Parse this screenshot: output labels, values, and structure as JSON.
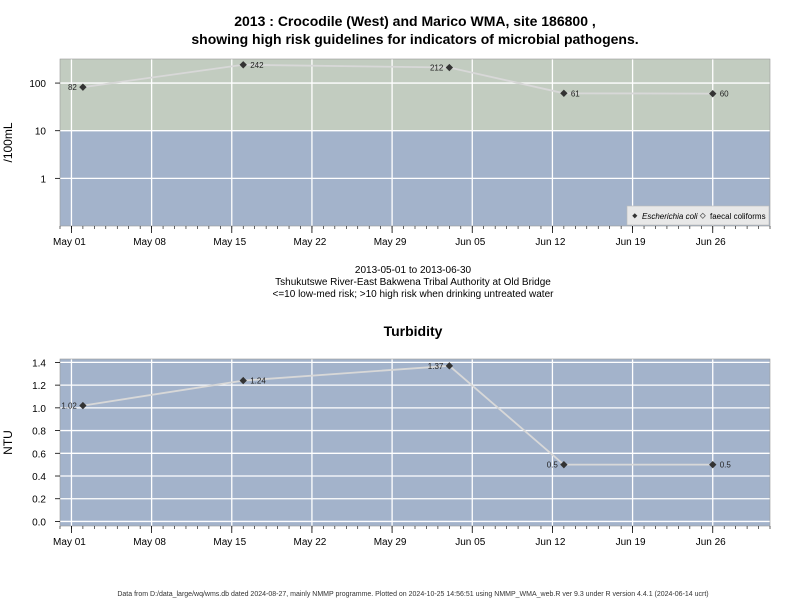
{
  "title_line1": "2013 : Crocodile (West) and Marico WMA, site 186800 ,",
  "title_line2": "showing high risk guidelines for indicators of microbial pathogens.",
  "date_range": "2013-05-01 to 2013-06-30",
  "location": "Tshukutswe River-East Bakwena Tribal Authority at Old Bridge",
  "risk_note": "<=10 low-med risk; >10 high risk when drinking untreated water",
  "footer": "Data from D:/data_large/wq/wms.db dated 2024-08-27, mainly NMMP programme. Plotted on 2024-10-25 14:56:51 using NMMP_WMA_web.R ver 9.3 under R version 4.4.1 (2024-06-14 ucrt)",
  "colors": {
    "high_risk_band": "#c2ccc0",
    "low_risk_band": "#a3b3cb",
    "gridline": "#ffffff",
    "series_line": "#d8d8d8",
    "marker": "#333333"
  },
  "chart_data": [
    {
      "id": "microbial",
      "type": "line",
      "title": "",
      "xlabel": "",
      "ylabel": "/100mL",
      "y_scale": "log",
      "x_tick_labels": [
        "May 01",
        "May 08",
        "May 15",
        "May 22",
        "May 29",
        "Jun 05",
        "Jun 12",
        "Jun 19",
        "Jun 26"
      ],
      "x_tick_dates": [
        "2013-05-01",
        "2013-05-08",
        "2013-05-15",
        "2013-05-22",
        "2013-05-29",
        "2013-06-05",
        "2013-06-12",
        "2013-06-19",
        "2013-06-26"
      ],
      "x_range": [
        "2013-04-30",
        "2013-07-01"
      ],
      "y_ticks": [
        1,
        10,
        100
      ],
      "y_tick_labels": [
        "1",
        "10",
        "100"
      ],
      "y_range": [
        0.1,
        320
      ],
      "guideline": {
        "value": 10,
        "above": "high risk",
        "below": "low-med risk"
      },
      "grid": true,
      "legend": {
        "position": "bottom-right",
        "entries": [
          "Escherichia coli",
          "faecal coliforms"
        ]
      },
      "series": [
        {
          "name": "Escherichia coli",
          "points": [
            {
              "x": "2013-05-02",
              "y": 82,
              "label": "82"
            },
            {
              "x": "2013-05-16",
              "y": 242,
              "label": "242"
            },
            {
              "x": "2013-06-03",
              "y": 212,
              "label": "212"
            },
            {
              "x": "2013-06-13",
              "y": 61,
              "label": "61"
            },
            {
              "x": "2013-06-26",
              "y": 60,
              "label": "60"
            }
          ]
        }
      ]
    },
    {
      "id": "turbidity",
      "type": "line",
      "title": "Turbidity",
      "xlabel": "",
      "ylabel": "NTU",
      "y_scale": "linear",
      "x_tick_labels": [
        "May 01",
        "May 08",
        "May 15",
        "May 22",
        "May 29",
        "Jun 05",
        "Jun 12",
        "Jun 19",
        "Jun 26"
      ],
      "x_tick_dates": [
        "2013-05-01",
        "2013-05-08",
        "2013-05-15",
        "2013-05-22",
        "2013-05-29",
        "2013-06-05",
        "2013-06-12",
        "2013-06-19",
        "2013-06-26"
      ],
      "x_range": [
        "2013-04-30",
        "2013-07-01"
      ],
      "y_ticks": [
        0.0,
        0.2,
        0.4,
        0.6,
        0.8,
        1.0,
        1.2,
        1.4
      ],
      "y_tick_labels": [
        "0.0",
        "0.2",
        "0.4",
        "0.6",
        "0.8",
        "1.0",
        "1.2",
        "1.4"
      ],
      "y_range": [
        -0.04,
        1.43
      ],
      "grid": true,
      "series": [
        {
          "name": "",
          "points": [
            {
              "x": "2013-05-02",
              "y": 1.02,
              "label": "1.02"
            },
            {
              "x": "2013-05-16",
              "y": 1.24,
              "label": "1.24"
            },
            {
              "x": "2013-06-03",
              "y": 1.37,
              "label": "1.37"
            },
            {
              "x": "2013-06-13",
              "y": 0.5,
              "label": "0.5"
            },
            {
              "x": "2013-06-26",
              "y": 0.5,
              "label": "0.5"
            }
          ]
        }
      ]
    }
  ]
}
